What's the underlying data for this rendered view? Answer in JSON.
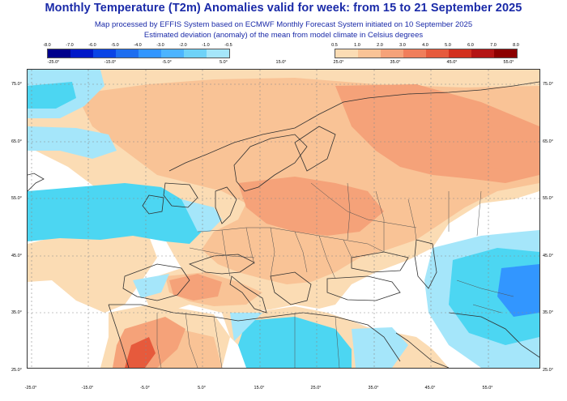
{
  "title": "Monthly Temperature (T2m) Anomalies valid for week: from 15 to 21 September 2025",
  "subtitle_line1": "Map processed by EFFIS System based on ECMWF Monthly Forecast System initiated on 10 September 2025",
  "subtitle_line2": "Estimated deviation (anomaly) of the mean from model climate in Celsius degrees",
  "legend_negative": {
    "values": [
      "-8.0",
      "-7.0",
      "-6.0",
      "-5.0",
      "-4.0",
      "-3.0",
      "-2.0",
      "-1.0",
      "-0.5"
    ],
    "colors": [
      "#00008c",
      "#0018c8",
      "#0a44e6",
      "#1e6ef0",
      "#3296ff",
      "#4cb4ff",
      "#6ed2f8",
      "#a5e6fa"
    ],
    "ticks": [
      "-25.0°",
      "-15.0°",
      "-5.0°",
      "5.0°"
    ]
  },
  "legend_positive": {
    "values": [
      "0.5",
      "1.0",
      "2.0",
      "3.0",
      "4.0",
      "5.0",
      "6.0",
      "7.0",
      "8.0"
    ],
    "colors": [
      "#fbdcb4",
      "#f9c396",
      "#f5a279",
      "#f07e5b",
      "#e65a3c",
      "#d2301e",
      "#b41414",
      "#8c0000"
    ],
    "ticks": [
      "25.0°",
      "35.0°",
      "45.0°",
      "55.0°"
    ]
  },
  "lon_center_label": "15.0°",
  "axes": {
    "lat_left": [
      "75.0°",
      "65.0°",
      "55.0°",
      "45.0°",
      "35.0°",
      "25.0°"
    ],
    "lat_right": [
      "75.0°",
      "65.0°",
      "55.0°",
      "45.0°",
      "35.0°",
      "25.0°"
    ],
    "lon_bottom": [
      "-25.0°",
      "-15.0°",
      "-5.0°",
      "5.0°",
      "15.0°",
      "25.0°",
      "35.0°",
      "45.0°",
      "55.0°"
    ]
  },
  "colors": {
    "title": "#1a2aa8",
    "ocean_neutral": "#ffffff",
    "cold_light": "#a5e6fa",
    "cold_mid": "#4cd6f2",
    "cold_strong": "#3296ff",
    "warm_light": "#fbdcb4",
    "warm_mid": "#f9c396",
    "warm_strong": "#f5a279",
    "warm_hot": "#e65a3c"
  }
}
